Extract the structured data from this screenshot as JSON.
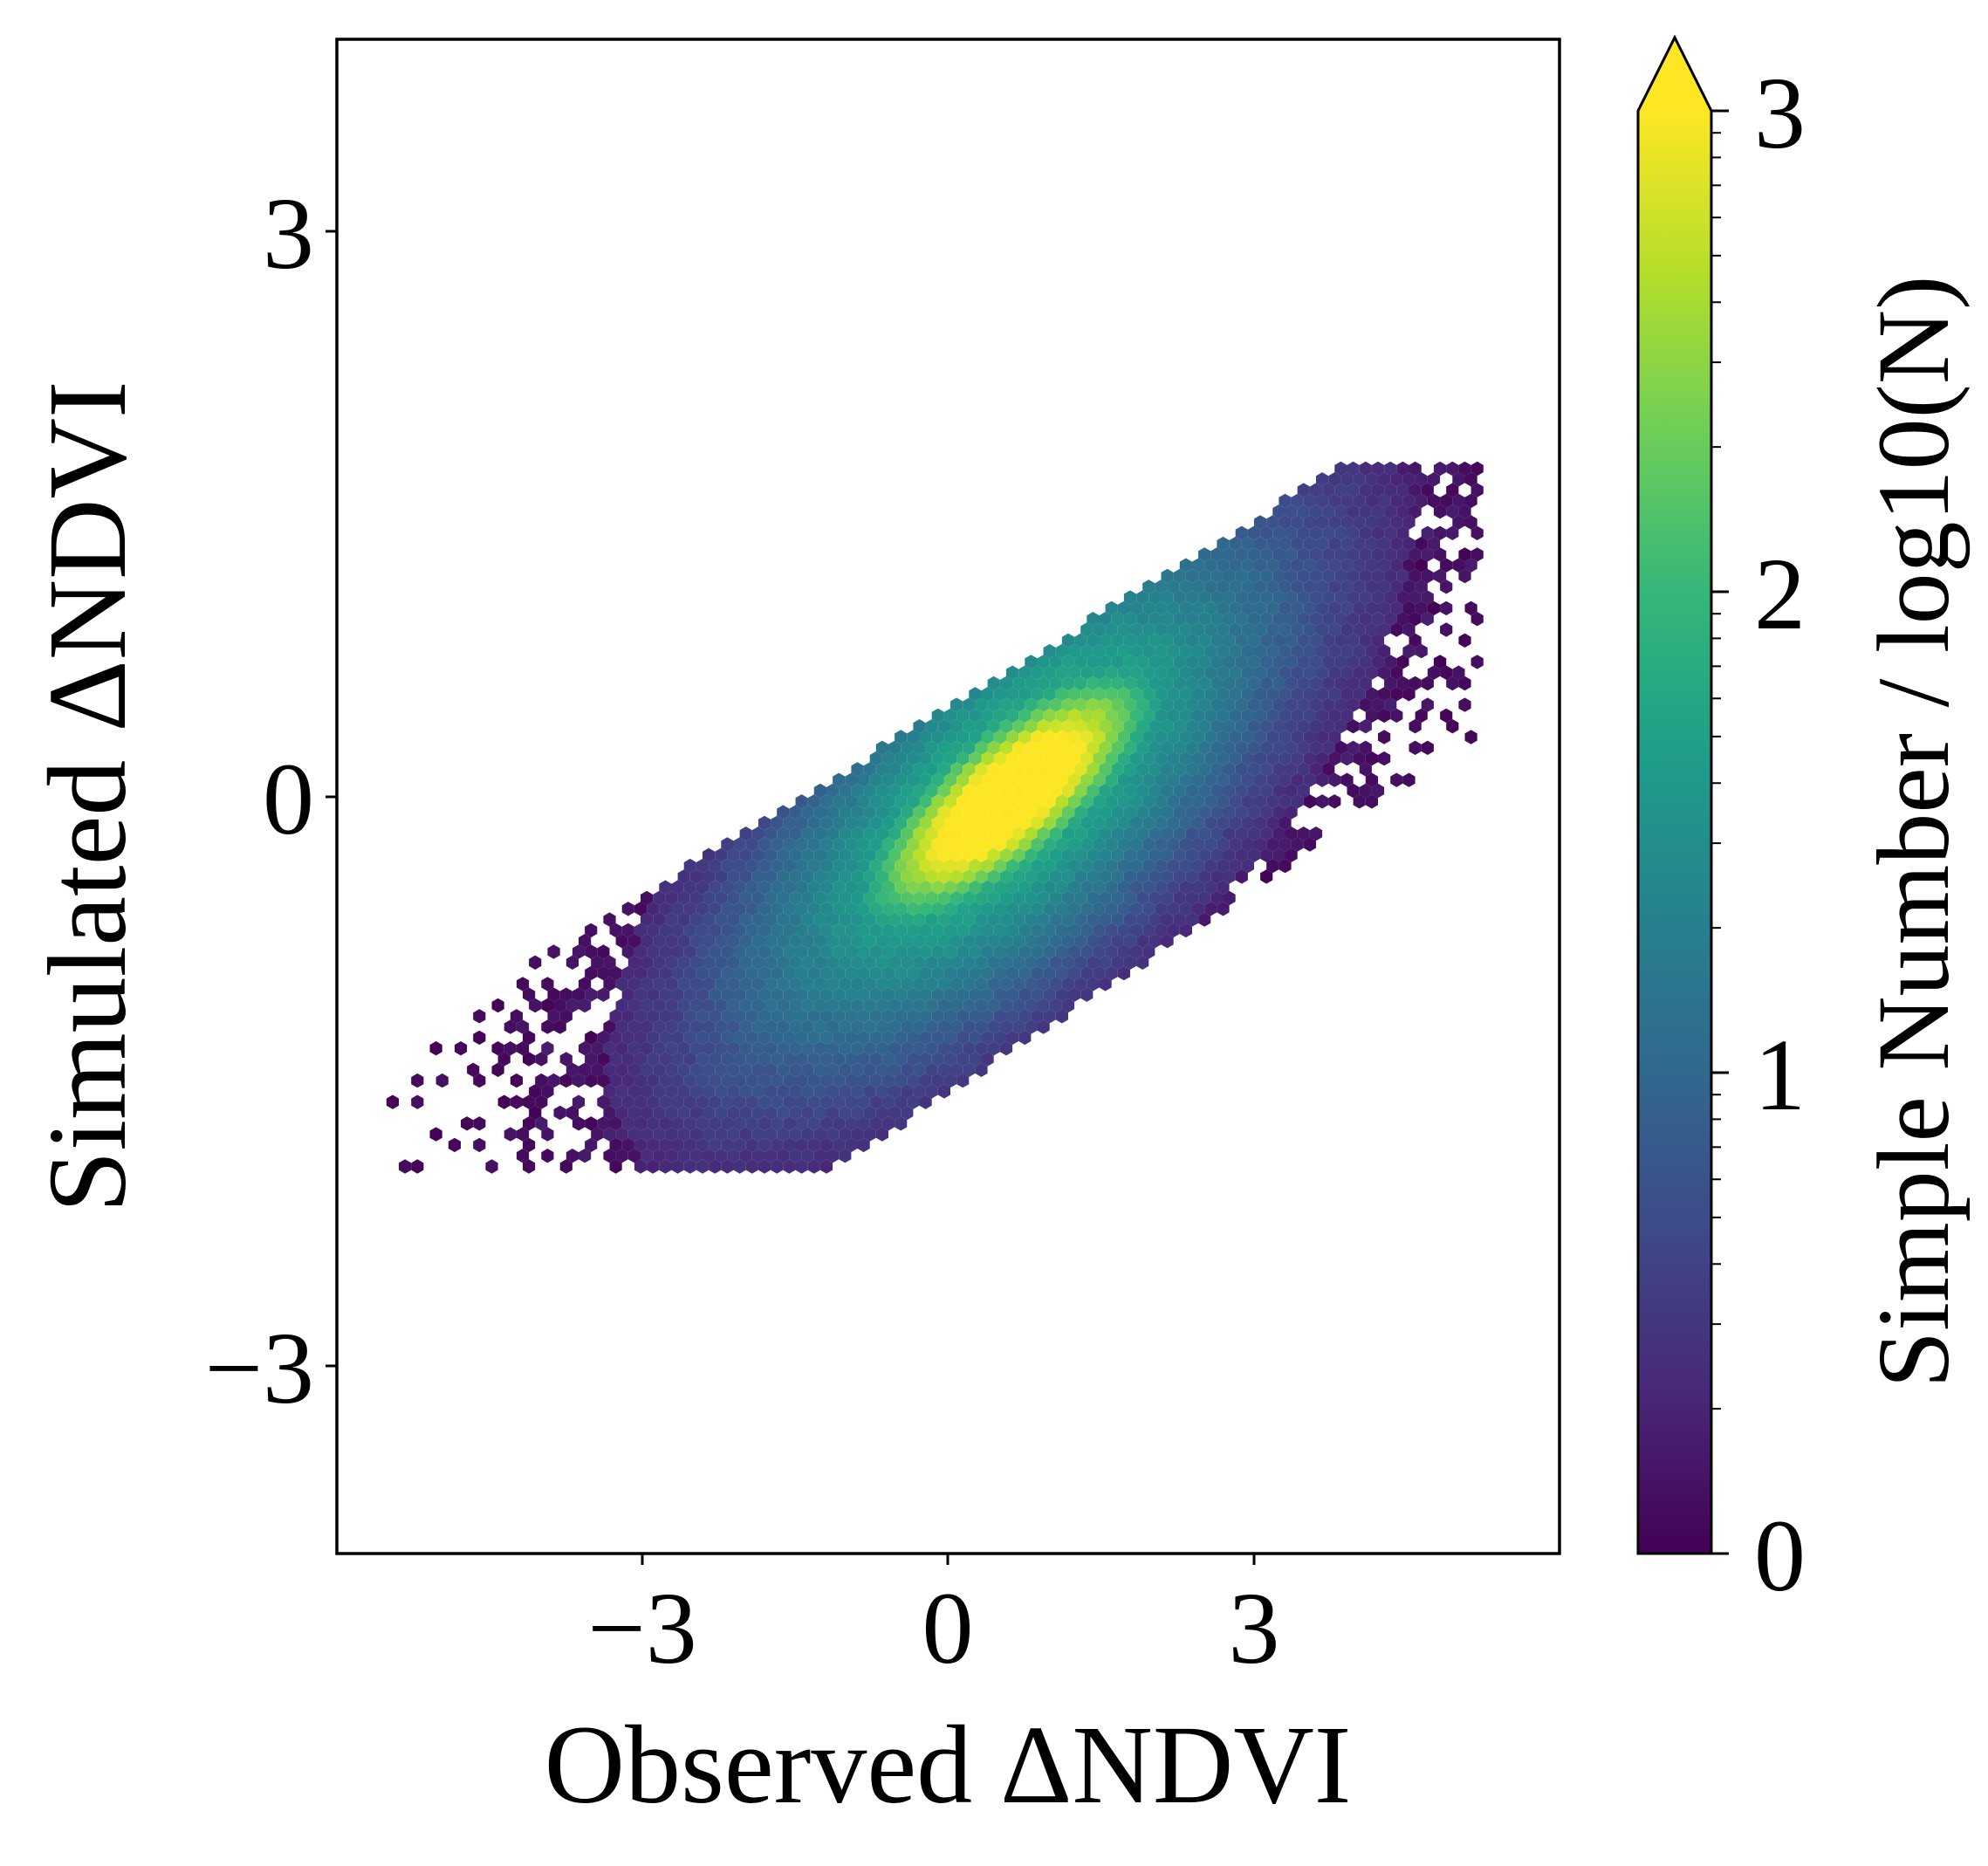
{
  "chart_data": {
    "type": "heatmap",
    "subtype": "hexbin",
    "title": "",
    "xlabel": "Observed ΔNDVI",
    "ylabel": "Simulated ΔNDVI",
    "xlim": [
      -6,
      6
    ],
    "ylim": [
      -4,
      4
    ],
    "xticks": [
      -3,
      0,
      3
    ],
    "yticks": [
      -3,
      0,
      3
    ],
    "xtick_labels": [
      "−3",
      "0",
      "3"
    ],
    "ytick_labels": [
      "−3",
      "0",
      "3"
    ],
    "grid": false,
    "density_model": {
      "description": "hexbin density of sample points",
      "center": [
        0.6,
        0.0
      ],
      "spine_slope": 0.36,
      "upper_extent": {
        "x_min": -5.5,
        "x_max": 5.2,
        "y_max": 1.75
      },
      "lower_extent": {
        "y_min": -2.0
      }
    },
    "colorbar": {
      "label": "Simple Number / log10(N)",
      "range": [
        0,
        3
      ],
      "ticks": [
        0,
        1,
        2,
        3
      ],
      "tick_labels": [
        "0",
        "1",
        "2",
        "3"
      ],
      "scale": "log10",
      "extend": "max",
      "colormap": "viridis",
      "colors": [
        "#440154",
        "#482878",
        "#3e4989",
        "#31688e",
        "#26828e",
        "#1f9e89",
        "#35b779",
        "#6ece58",
        "#b5de2b",
        "#fde725"
      ]
    }
  }
}
